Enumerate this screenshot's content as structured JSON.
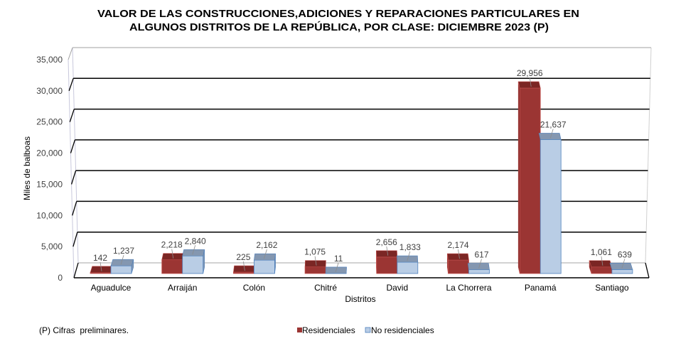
{
  "chart_data": {
    "type": "bar",
    "title": [
      "VALOR DE LAS CONSTRUCCIONES,ADICIONES Y REPARACIONES PARTICULARES EN",
      "ALGUNOS DISTRITOS DE LA REPÚBLICA, POR CLASE: DICIEMBRE 2023 (P)"
    ],
    "xlabel": "Distritos",
    "ylabel": "Miles de balboas",
    "ylim": [
      0,
      35000
    ],
    "yticks": [
      0,
      5000,
      10000,
      15000,
      20000,
      25000,
      30000,
      35000
    ],
    "grid": true,
    "legend_position": "bottom",
    "categories": [
      "Aguadulce",
      "Arraiján",
      "Colón",
      "Chitré",
      "David",
      "La Chorrera",
      "Panamá",
      "Santiago"
    ],
    "series": [
      {
        "name": "Residenciales",
        "color": "#9b3533",
        "top_color": "#7b2624",
        "border_color": "#c0504d",
        "values": [
          142,
          2218,
          225,
          1075,
          2656,
          2174,
          29956,
          1061
        ]
      },
      {
        "name": "No residenciales",
        "color": "#b9cde5",
        "top_color": "#8497b0",
        "border_color": "#4f81bd",
        "values": [
          1237,
          2840,
          2162,
          11,
          1833,
          617,
          21637,
          639
        ]
      }
    ],
    "footnote": "(P) Cifras  preliminares."
  }
}
